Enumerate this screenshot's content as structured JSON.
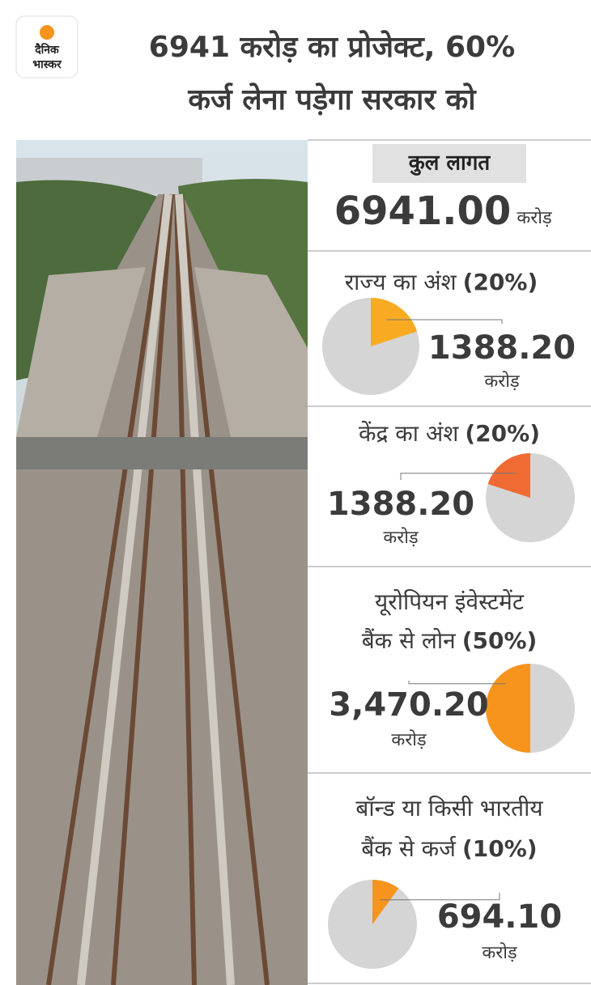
{
  "header": {
    "logo": [
      "दैनिक",
      "भास्कर"
    ],
    "title": [
      "6941 करोड़ का प्रोजेक्ट, 60%",
      "कर्ज लेना पड़ेगा सरकार को"
    ]
  },
  "total": {
    "label": "कुल लागत",
    "amount": "6941.00",
    "unit": "करोड़"
  },
  "chart_data": [
    {
      "type": "pie",
      "title": [
        "राज्य का अंश"
      ],
      "values": [
        20
      ],
      "value_labels": [
        "(20%)"
      ],
      "color": "#f8ab22",
      "direction": "clockwise",
      "amount": "1388.20",
      "unit": "करोड़"
    },
    {
      "type": "pie",
      "title": [
        "केंद्र का अंश"
      ],
      "values": [
        20
      ],
      "value_labels": [
        "(20%)"
      ],
      "color": "#ef6b33",
      "direction": "counterclockwise",
      "amount": "1388.20",
      "unit": "करोड़"
    },
    {
      "type": "pie",
      "title": [
        "यूरोपियन इंवेस्टमेंट",
        "बैंक से लोन"
      ],
      "values": [
        50
      ],
      "value_labels": [
        "(50%)"
      ],
      "color": "#f7941d",
      "direction": "counterclockwise",
      "amount": "3,470.20",
      "unit": "करोड़"
    },
    {
      "type": "pie",
      "title": [
        "बॉन्ड या किसी भारतीय",
        "बैंक से कर्ज"
      ],
      "values": [
        10
      ],
      "value_labels": [
        "(10%)"
      ],
      "color": "#f7941d",
      "direction": "clockwise",
      "amount": "694.10",
      "unit": "करोड़"
    }
  ]
}
